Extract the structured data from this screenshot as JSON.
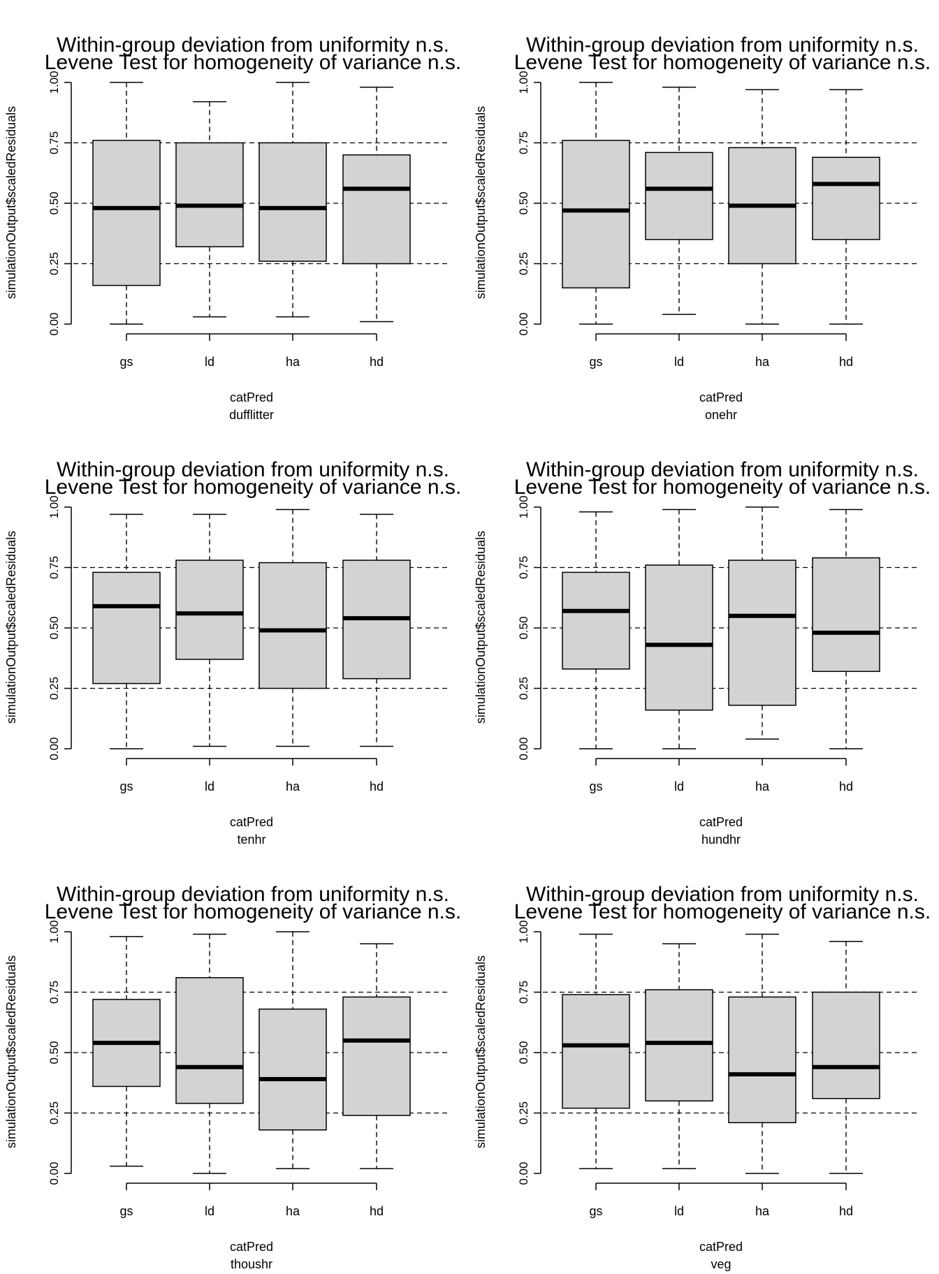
{
  "chart_data": [
    {
      "type": "boxplot",
      "title": [
        "Within-group deviation from uniformity n.s.",
        "Levene Test for homogeneity of variance n.s."
      ],
      "xlabel": "catPred",
      "subxlabel": "dufflitter",
      "ylabel": "simulationOutput$scaledResiduals",
      "ylim": [
        0,
        1
      ],
      "yticks": [
        "0.00",
        "0.25",
        "0.50",
        "0.75",
        "1.00"
      ],
      "reference_lines": [
        0.25,
        0.5,
        0.75
      ],
      "categories": [
        "gs",
        "ld",
        "ha",
        "hd"
      ],
      "boxes": [
        {
          "min": 0.0,
          "q1": 0.16,
          "median": 0.48,
          "q3": 0.76,
          "max": 1.0
        },
        {
          "min": 0.03,
          "q1": 0.32,
          "median": 0.49,
          "q3": 0.75,
          "max": 0.92
        },
        {
          "min": 0.03,
          "q1": 0.26,
          "median": 0.48,
          "q3": 0.75,
          "max": 1.0
        },
        {
          "min": 0.01,
          "q1": 0.25,
          "median": 0.56,
          "q3": 0.7,
          "max": 0.98
        }
      ]
    },
    {
      "type": "boxplot",
      "title": [
        "Within-group deviation from uniformity n.s.",
        "Levene Test for homogeneity of variance n.s."
      ],
      "xlabel": "catPred",
      "subxlabel": "onehr",
      "ylabel": "simulationOutput$scaledResiduals",
      "ylim": [
        0,
        1
      ],
      "yticks": [
        "0.00",
        "0.25",
        "0.50",
        "0.75",
        "1.00"
      ],
      "reference_lines": [
        0.25,
        0.5,
        0.75
      ],
      "categories": [
        "gs",
        "ld",
        "ha",
        "hd"
      ],
      "boxes": [
        {
          "min": 0.0,
          "q1": 0.15,
          "median": 0.47,
          "q3": 0.76,
          "max": 1.0
        },
        {
          "min": 0.04,
          "q1": 0.35,
          "median": 0.56,
          "q3": 0.71,
          "max": 0.98
        },
        {
          "min": 0.0,
          "q1": 0.25,
          "median": 0.49,
          "q3": 0.73,
          "max": 0.97
        },
        {
          "min": 0.0,
          "q1": 0.35,
          "median": 0.58,
          "q3": 0.69,
          "max": 0.97
        }
      ]
    },
    {
      "type": "boxplot",
      "title": [
        "Within-group deviation from uniformity n.s.",
        "Levene Test for homogeneity of variance n.s."
      ],
      "xlabel": "catPred",
      "subxlabel": "tenhr",
      "ylabel": "simulationOutput$scaledResiduals",
      "ylim": [
        0,
        1
      ],
      "yticks": [
        "0.00",
        "0.25",
        "0.50",
        "0.75",
        "1.00"
      ],
      "reference_lines": [
        0.25,
        0.5,
        0.75
      ],
      "categories": [
        "gs",
        "ld",
        "ha",
        "hd"
      ],
      "boxes": [
        {
          "min": 0.0,
          "q1": 0.27,
          "median": 0.59,
          "q3": 0.73,
          "max": 0.97
        },
        {
          "min": 0.01,
          "q1": 0.37,
          "median": 0.56,
          "q3": 0.78,
          "max": 0.97
        },
        {
          "min": 0.01,
          "q1": 0.25,
          "median": 0.49,
          "q3": 0.77,
          "max": 0.99
        },
        {
          "min": 0.01,
          "q1": 0.29,
          "median": 0.54,
          "q3": 0.78,
          "max": 0.97
        }
      ]
    },
    {
      "type": "boxplot",
      "title": [
        "Within-group deviation from uniformity n.s.",
        "Levene Test for homogeneity of variance n.s."
      ],
      "xlabel": "catPred",
      "subxlabel": "hundhr",
      "ylabel": "simulationOutput$scaledResiduals",
      "ylim": [
        0,
        1
      ],
      "yticks": [
        "0.00",
        "0.25",
        "0.50",
        "0.75",
        "1.00"
      ],
      "reference_lines": [
        0.25,
        0.5,
        0.75
      ],
      "categories": [
        "gs",
        "ld",
        "ha",
        "hd"
      ],
      "boxes": [
        {
          "min": 0.0,
          "q1": 0.33,
          "median": 0.57,
          "q3": 0.73,
          "max": 0.98
        },
        {
          "min": 0.0,
          "q1": 0.16,
          "median": 0.43,
          "q3": 0.76,
          "max": 0.99
        },
        {
          "min": 0.04,
          "q1": 0.18,
          "median": 0.55,
          "q3": 0.78,
          "max": 1.0
        },
        {
          "min": 0.0,
          "q1": 0.32,
          "median": 0.48,
          "q3": 0.79,
          "max": 0.99
        }
      ]
    },
    {
      "type": "boxplot",
      "title": [
        "Within-group deviation from uniformity n.s.",
        "Levene Test for homogeneity of variance n.s."
      ],
      "xlabel": "catPred",
      "subxlabel": "thoushr",
      "ylabel": "simulationOutput$scaledResiduals",
      "ylim": [
        0,
        1
      ],
      "yticks": [
        "0.00",
        "0.25",
        "0.50",
        "0.75",
        "1.00"
      ],
      "reference_lines": [
        0.25,
        0.5,
        0.75
      ],
      "categories": [
        "gs",
        "ld",
        "ha",
        "hd"
      ],
      "boxes": [
        {
          "min": 0.03,
          "q1": 0.36,
          "median": 0.54,
          "q3": 0.72,
          "max": 0.98
        },
        {
          "min": 0.0,
          "q1": 0.29,
          "median": 0.44,
          "q3": 0.81,
          "max": 0.99
        },
        {
          "min": 0.02,
          "q1": 0.18,
          "median": 0.39,
          "q3": 0.68,
          "max": 1.0
        },
        {
          "min": 0.02,
          "q1": 0.24,
          "median": 0.55,
          "q3": 0.73,
          "max": 0.95
        }
      ]
    },
    {
      "type": "boxplot",
      "title": [
        "Within-group deviation from uniformity n.s.",
        "Levene Test for homogeneity of variance n.s."
      ],
      "xlabel": "catPred",
      "subxlabel": "veg",
      "ylabel": "simulationOutput$scaledResiduals",
      "ylim": [
        0,
        1
      ],
      "yticks": [
        "0.00",
        "0.25",
        "0.50",
        "0.75",
        "1.00"
      ],
      "reference_lines": [
        0.25,
        0.5,
        0.75
      ],
      "categories": [
        "gs",
        "ld",
        "ha",
        "hd"
      ],
      "boxes": [
        {
          "min": 0.02,
          "q1": 0.27,
          "median": 0.53,
          "q3": 0.74,
          "max": 0.99
        },
        {
          "min": 0.02,
          "q1": 0.3,
          "median": 0.54,
          "q3": 0.76,
          "max": 0.95
        },
        {
          "min": 0.0,
          "q1": 0.21,
          "median": 0.41,
          "q3": 0.73,
          "max": 0.99
        },
        {
          "min": 0.0,
          "q1": 0.31,
          "median": 0.44,
          "q3": 0.75,
          "max": 0.96
        }
      ]
    }
  ]
}
